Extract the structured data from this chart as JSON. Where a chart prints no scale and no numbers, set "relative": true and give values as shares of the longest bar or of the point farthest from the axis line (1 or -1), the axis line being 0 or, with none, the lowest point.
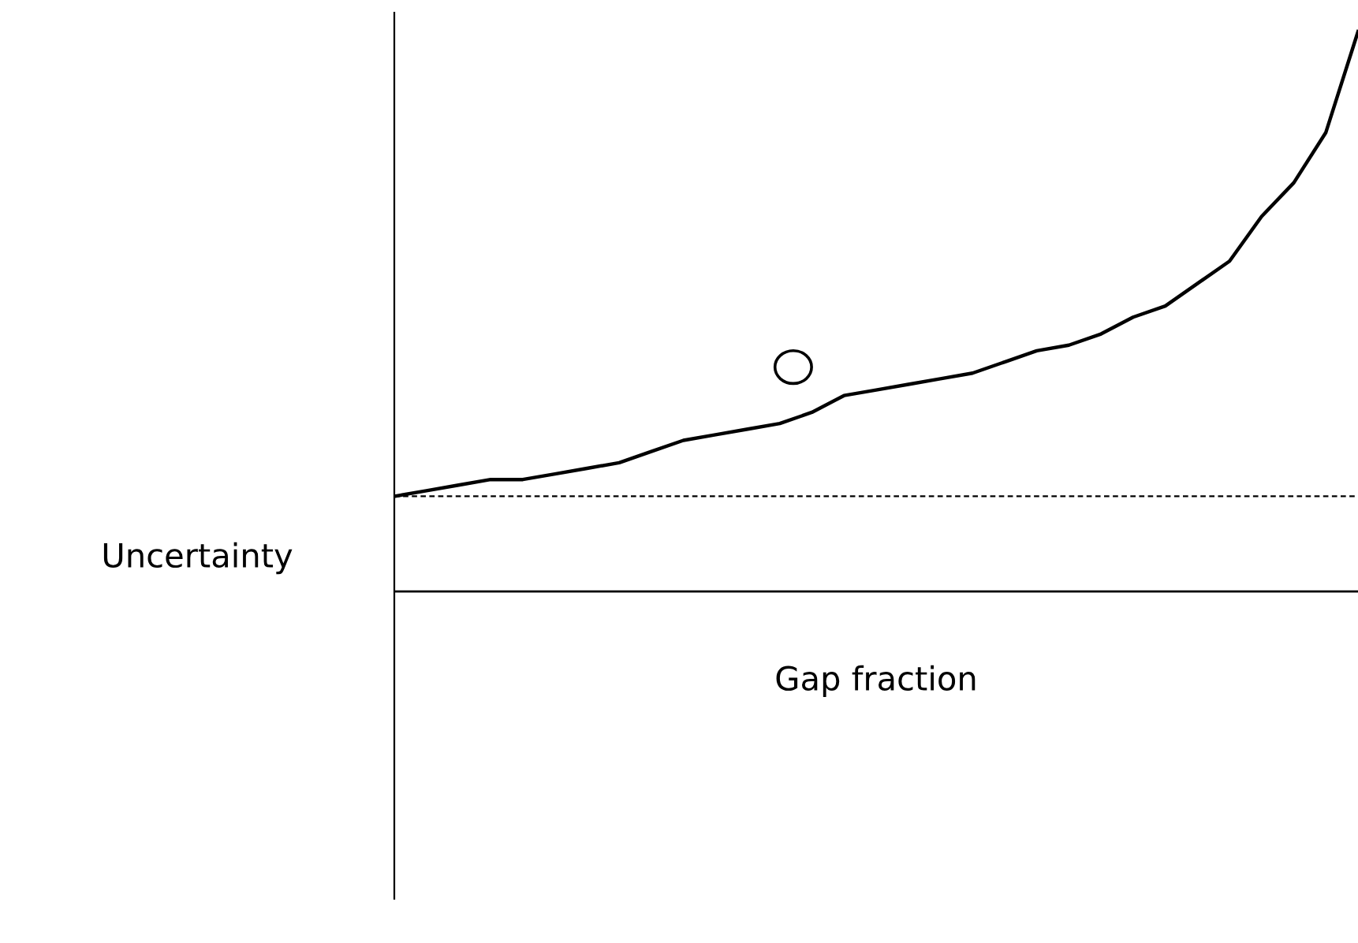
{
  "chart_data": {
    "type": "line",
    "relative": true,
    "xlabel": "Gap fraction",
    "ylabel": "Uncertainty",
    "categories": [
      null,
      null,
      null,
      null,
      null,
      null,
      null,
      null,
      null,
      null,
      null,
      null,
      null,
      null,
      null,
      null,
      null,
      null,
      null,
      null,
      null,
      null,
      null,
      null,
      null,
      null,
      null,
      null,
      null,
      null,
      null
    ],
    "series": [
      {
        "color": "#000000",
        "line_style": "solid",
        "marker": "none",
        "values": [
          0.17,
          0.18,
          0.19,
          0.2,
          0.2,
          0.21,
          0.22,
          0.23,
          0.25,
          0.27,
          0.28,
          0.29,
          0.3,
          0.32,
          0.35,
          0.36,
          0.37,
          0.38,
          0.39,
          0.41,
          0.43,
          0.44,
          0.46,
          0.49,
          0.51,
          0.55,
          0.59,
          0.67,
          0.73,
          0.82,
          1
        ]
      }
    ],
    "ref_lines": [
      {
        "axis": "y",
        "value": 0.17,
        "color": "#000000",
        "line_style": "dashed"
      }
    ],
    "legend": false
  }
}
